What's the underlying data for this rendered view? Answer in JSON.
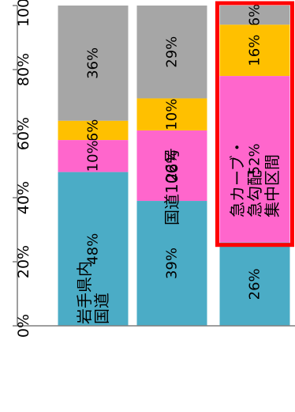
{
  "chart_data": {
    "type": "bar",
    "orientation": "horizontal-stacked-percent",
    "categories": [
      "岩手県内国道",
      "国道106号",
      "急カーブ・急勾配集中区間"
    ],
    "category_lines": [
      [
        "岩手県内",
        "国道"
      ],
      [
        "国道106号"
      ],
      [
        "急カーブ・",
        "急勾配",
        "集中区間"
      ]
    ],
    "series": [
      {
        "color": "#a6a6a6",
        "values": [
          36,
          29,
          6
        ]
      },
      {
        "color": "#ffc000",
        "values": [
          6,
          10,
          16
        ]
      },
      {
        "color": "#ff66cc",
        "values": [
          10,
          22,
          52
        ]
      },
      {
        "color": "#4bacc6",
        "values": [
          48,
          39,
          26
        ]
      }
    ],
    "labels": [
      [
        "36%",
        "6%",
        "10%",
        "48%"
      ],
      [
        "29%",
        "10%",
        "22%",
        "39%"
      ],
      [
        "6%",
        "16%",
        "52%",
        "26%"
      ]
    ],
    "ticks": [
      "0%",
      "20%",
      "40%",
      "60%",
      "80%",
      "100%"
    ],
    "xlim": [
      0,
      100
    ],
    "grid": false,
    "legend": "none",
    "highlight": {
      "category_index": 2,
      "color": "#ff0000"
    }
  }
}
